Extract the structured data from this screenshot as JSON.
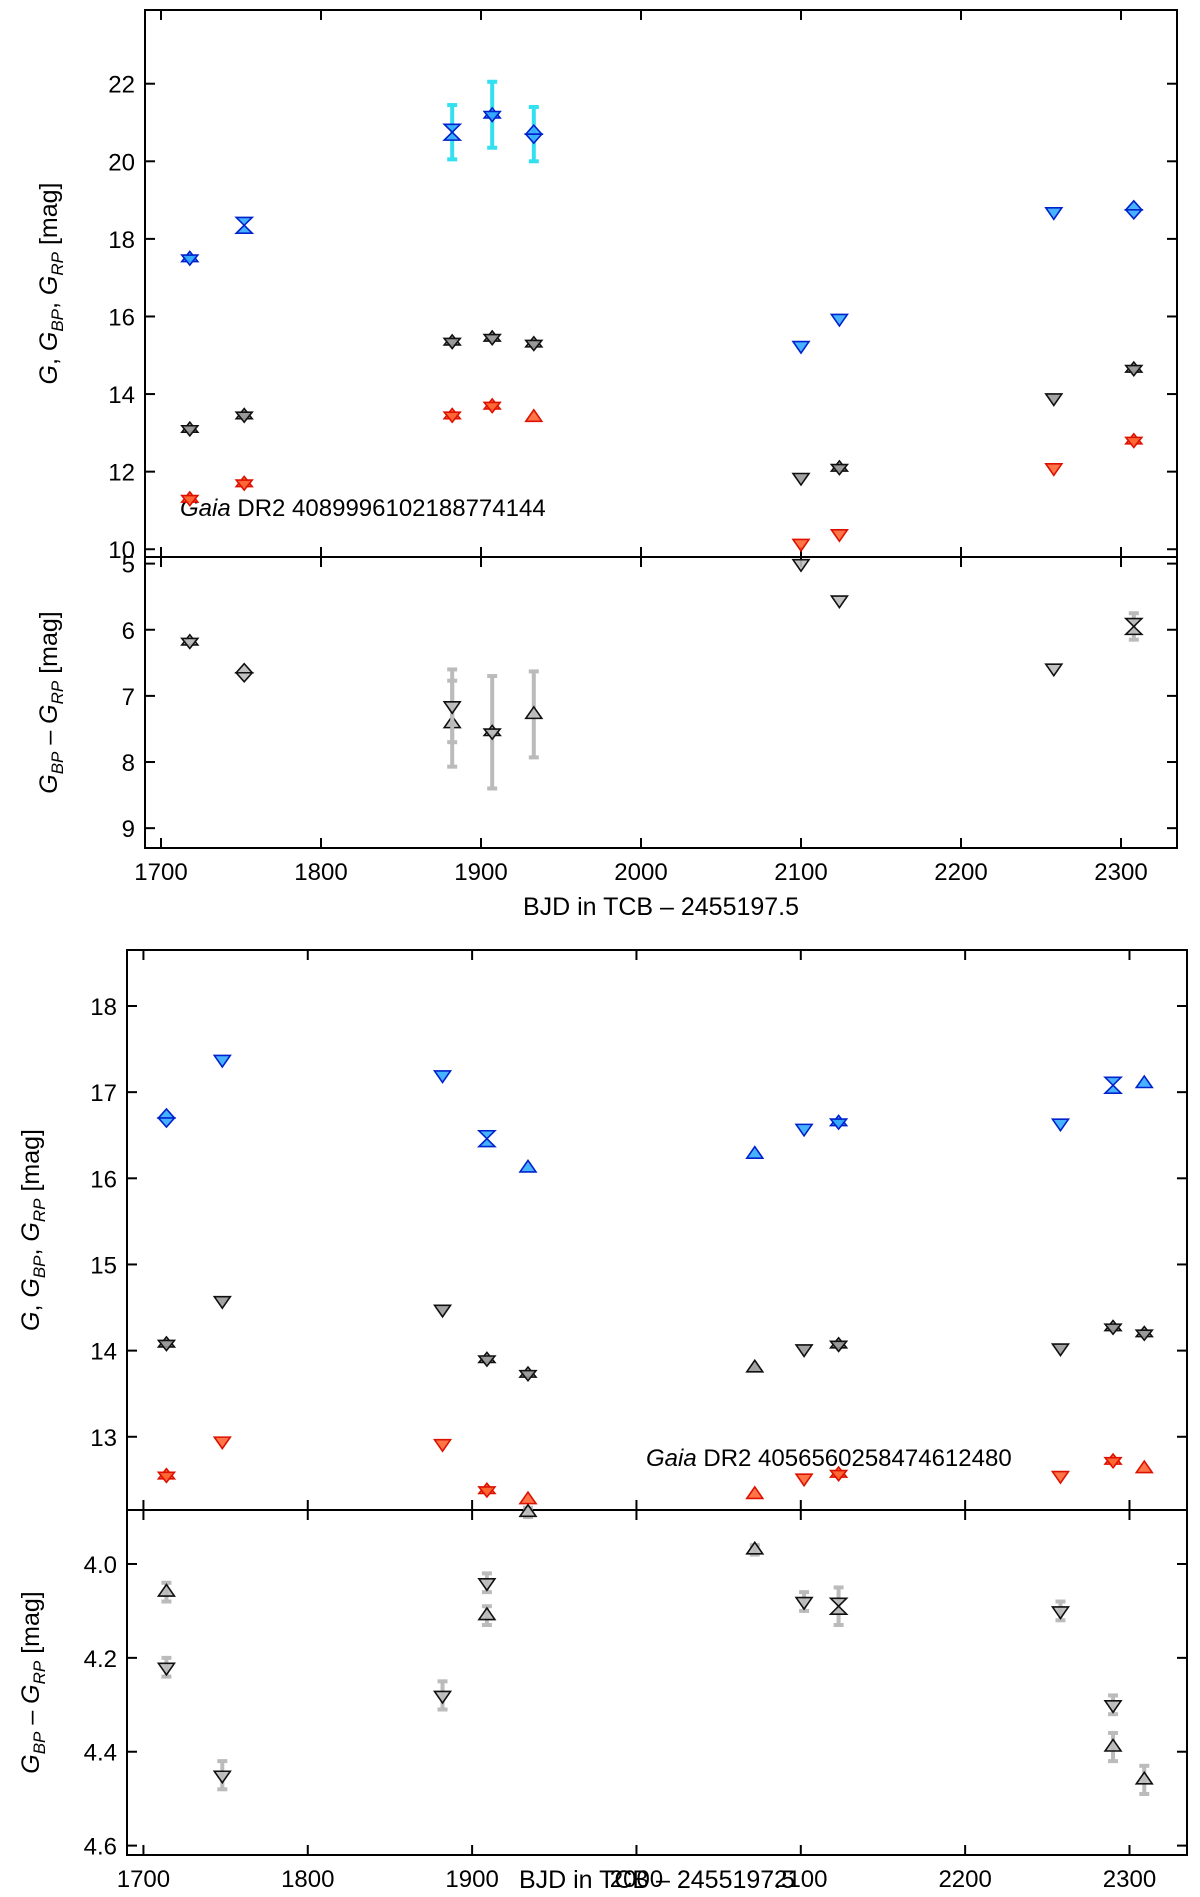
{
  "chart_data": [
    {
      "type": "scatter",
      "panel": "top-magnitudes",
      "source_italic": "Gaia",
      "source_rest": "DR2 4089996102188774144",
      "ylabel": "G, G_BP, G_RP  [mag]",
      "xlabel": "",
      "xlim": [
        1690,
        2335
      ],
      "ylim": [
        23.9,
        9.8
      ],
      "yticks": [
        10,
        12,
        14,
        16,
        18,
        20,
        22
      ],
      "ytick_labels": [
        "10",
        "12",
        "14",
        "16",
        "18",
        "20",
        "22"
      ],
      "series": [
        {
          "name": "G_RP",
          "fill": "#ff6633",
          "points": [
            {
              "x": 1718,
              "y": 11.3,
              "m": "star"
            },
            {
              "x": 1752,
              "y": 11.7,
              "m": "star"
            },
            {
              "x": 1882,
              "y": 13.45,
              "m": "star"
            },
            {
              "x": 1907,
              "y": 13.7,
              "m": "star"
            },
            {
              "x": 1933,
              "y": 13.4,
              "m": "up"
            },
            {
              "x": 2100,
              "y": 10.15,
              "m": "down"
            },
            {
              "x": 2124,
              "y": 10.4,
              "m": "down"
            },
            {
              "x": 2258,
              "y": 12.1,
              "m": "down"
            },
            {
              "x": 2308,
              "y": 12.8,
              "m": "star"
            }
          ]
        },
        {
          "name": "G",
          "fill": "#999999",
          "points": [
            {
              "x": 1718,
              "y": 13.1,
              "m": "star"
            },
            {
              "x": 1752,
              "y": 13.45,
              "m": "star"
            },
            {
              "x": 1882,
              "y": 15.35,
              "m": "star"
            },
            {
              "x": 1907,
              "y": 15.45,
              "m": "star"
            },
            {
              "x": 1933,
              "y": 15.3,
              "m": "star"
            },
            {
              "x": 2100,
              "y": 11.85,
              "m": "down"
            },
            {
              "x": 2124,
              "y": 12.1,
              "m": "star"
            },
            {
              "x": 2258,
              "y": 13.9,
              "m": "down"
            },
            {
              "x": 2308,
              "y": 14.65,
              "m": "star"
            }
          ]
        },
        {
          "name": "G_BP",
          "fill": "#33aaff",
          "points": [
            {
              "x": 1718,
              "y": 17.5,
              "m": "star"
            },
            {
              "x": 1752,
              "y": 18.35,
              "m": "hourglass"
            },
            {
              "x": 1882,
              "y": 20.75,
              "m": "hourglass",
              "err": 0.7
            },
            {
              "x": 1907,
              "y": 21.2,
              "m": "star",
              "err": 0.85
            },
            {
              "x": 1933,
              "y": 20.7,
              "m": "diamond",
              "err": 0.7
            },
            {
              "x": 2100,
              "y": 15.25,
              "m": "down"
            },
            {
              "x": 2124,
              "y": 15.95,
              "m": "down"
            },
            {
              "x": 2258,
              "y": 18.7,
              "m": "down"
            },
            {
              "x": 2308,
              "y": 18.75,
              "m": "diamond"
            }
          ]
        }
      ]
    },
    {
      "type": "scatter",
      "panel": "top-color",
      "ylabel": "G_BP - G_RP  [mag]",
      "xlabel": "BJD in TCB – 2455197.5",
      "xlim": [
        1690,
        2335
      ],
      "ylim": [
        4.9,
        9.3
      ],
      "yticks": [
        5,
        6,
        7,
        8,
        9
      ],
      "ytick_labels": [
        "5",
        "6",
        "7",
        "8",
        "9"
      ],
      "xticks": [
        1700,
        1800,
        1900,
        2000,
        2100,
        2200,
        2300
      ],
      "xtick_labels": [
        "1700",
        "1800",
        "1900",
        "2000",
        "2100",
        "2200",
        "2300"
      ],
      "series": [
        {
          "name": "G_BP - G_RP",
          "fill": "#bbbbbb",
          "points": [
            {
              "x": 1718,
              "y": 6.18,
              "m": "star"
            },
            {
              "x": 1752,
              "y": 6.65,
              "m": "diamond"
            },
            {
              "x": 1882,
              "y": 7.42,
              "m": "up",
              "err": 0.65
            },
            {
              "x": 1882,
              "y": 7.15,
              "m": "down",
              "err": 0.55
            },
            {
              "x": 1907,
              "y": 7.55,
              "m": "star",
              "err": 0.85
            },
            {
              "x": 1933,
              "y": 7.28,
              "m": "up",
              "err": 0.65
            },
            {
              "x": 2100,
              "y": 5.0,
              "m": "down"
            },
            {
              "x": 2124,
              "y": 5.55,
              "m": "down"
            },
            {
              "x": 2258,
              "y": 6.58,
              "m": "down"
            },
            {
              "x": 2308,
              "y": 5.95,
              "m": "hourglass",
              "err": 0.2
            }
          ]
        }
      ]
    },
    {
      "type": "scatter",
      "panel": "bottom-magnitudes",
      "source_italic": "Gaia",
      "source_rest": "DR2 4056560258474612480",
      "ylabel": "G, G_BP, G_RP  [mag]",
      "xlabel": "",
      "xlim": [
        1690,
        2335
      ],
      "ylim": [
        18.65,
        12.15
      ],
      "yticks": [
        13,
        14,
        15,
        16,
        17,
        18
      ],
      "ytick_labels": [
        "13",
        "14",
        "15",
        "16",
        "17",
        "18"
      ],
      "series": [
        {
          "name": "G_RP",
          "fill": "#ff6633",
          "points": [
            {
              "x": 1714,
              "y": 12.55,
              "m": "star"
            },
            {
              "x": 1748,
              "y": 12.95,
              "m": "down"
            },
            {
              "x": 1882,
              "y": 12.92,
              "m": "down"
            },
            {
              "x": 1909,
              "y": 12.38,
              "m": "star"
            },
            {
              "x": 1934,
              "y": 12.27,
              "m": "up"
            },
            {
              "x": 2072,
              "y": 12.33,
              "m": "up"
            },
            {
              "x": 2102,
              "y": 12.52,
              "m": "down"
            },
            {
              "x": 2123,
              "y": 12.57,
              "m": "star"
            },
            {
              "x": 2258,
              "y": 12.55,
              "m": "down"
            },
            {
              "x": 2290,
              "y": 12.72,
              "m": "star"
            },
            {
              "x": 2309,
              "y": 12.63,
              "m": "up"
            }
          ]
        },
        {
          "name": "G",
          "fill": "#999999",
          "points": [
            {
              "x": 1714,
              "y": 14.08,
              "m": "star"
            },
            {
              "x": 1748,
              "y": 14.58,
              "m": "down"
            },
            {
              "x": 1882,
              "y": 14.48,
              "m": "down"
            },
            {
              "x": 1909,
              "y": 13.9,
              "m": "star"
            },
            {
              "x": 1934,
              "y": 13.73,
              "m": "star"
            },
            {
              "x": 2072,
              "y": 13.8,
              "m": "up"
            },
            {
              "x": 2102,
              "y": 14.02,
              "m": "down"
            },
            {
              "x": 2123,
              "y": 14.07,
              "m": "star"
            },
            {
              "x": 2258,
              "y": 14.03,
              "m": "down"
            },
            {
              "x": 2290,
              "y": 14.27,
              "m": "star"
            },
            {
              "x": 2309,
              "y": 14.2,
              "m": "star"
            }
          ]
        },
        {
          "name": "G_BP",
          "fill": "#33aaff",
          "points": [
            {
              "x": 1714,
              "y": 16.7,
              "m": "diamond"
            },
            {
              "x": 1748,
              "y": 17.38,
              "m": "down"
            },
            {
              "x": 1882,
              "y": 17.2,
              "m": "down"
            },
            {
              "x": 1909,
              "y": 16.46,
              "m": "hourglass"
            },
            {
              "x": 1934,
              "y": 16.12,
              "m": "up"
            },
            {
              "x": 2072,
              "y": 16.28,
              "m": "up"
            },
            {
              "x": 2102,
              "y": 16.58,
              "m": "down"
            },
            {
              "x": 2123,
              "y": 16.65,
              "m": "star"
            },
            {
              "x": 2258,
              "y": 16.64,
              "m": "down"
            },
            {
              "x": 2290,
              "y": 17.08,
              "m": "hourglass"
            },
            {
              "x": 2309,
              "y": 17.1,
              "m": "up"
            }
          ]
        }
      ]
    },
    {
      "type": "scatter",
      "panel": "bottom-color",
      "ylabel": "G_BP - G_RP  [mag]",
      "xlabel": "BJD in TCB – 2455197.5",
      "xlim": [
        1690,
        2335
      ],
      "ylim": [
        3.885,
        4.62
      ],
      "yticks": [
        4.0,
        4.2,
        4.4,
        4.6
      ],
      "ytick_labels": [
        "4.0",
        "4.2",
        "4.4",
        "4.6"
      ],
      "xticks": [
        1700,
        1800,
        1900,
        2000,
        2100,
        2200,
        2300
      ],
      "xtick_labels": [
        "1700",
        "1800",
        "1900",
        "2000",
        "2100",
        "2200",
        "2300"
      ],
      "series": [
        {
          "name": "G_BP - G_RP",
          "fill": "#bbbbbb",
          "points": [
            {
              "x": 1714,
              "y": 4.22,
              "m": "down",
              "err": 0.02
            },
            {
              "x": 1714,
              "y": 4.06,
              "m": "up",
              "err": 0.02
            },
            {
              "x": 1748,
              "y": 4.45,
              "m": "down",
              "err": 0.03
            },
            {
              "x": 1882,
              "y": 4.28,
              "m": "down",
              "err": 0.03
            },
            {
              "x": 1909,
              "y": 4.11,
              "m": "up",
              "err": 0.02
            },
            {
              "x": 1909,
              "y": 4.04,
              "m": "down",
              "err": 0.02
            },
            {
              "x": 1934,
              "y": 3.89,
              "m": "up",
              "err": 0.01
            },
            {
              "x": 2072,
              "y": 3.97,
              "m": "up",
              "err": 0.01
            },
            {
              "x": 2102,
              "y": 4.08,
              "m": "down",
              "err": 0.02
            },
            {
              "x": 2123,
              "y": 4.09,
              "m": "hourglass",
              "err": 0.04
            },
            {
              "x": 2258,
              "y": 4.1,
              "m": "down",
              "err": 0.02
            },
            {
              "x": 2290,
              "y": 4.39,
              "m": "up",
              "err": 0.03
            },
            {
              "x": 2290,
              "y": 4.3,
              "m": "down",
              "err": 0.02
            },
            {
              "x": 2309,
              "y": 4.46,
              "m": "up",
              "err": 0.03
            }
          ]
        }
      ]
    }
  ]
}
